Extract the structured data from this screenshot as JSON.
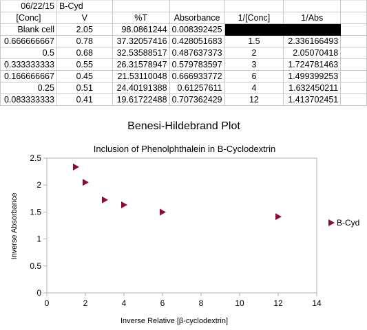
{
  "sheet": {
    "row0": [
      "06/22/15",
      "B-Cyd",
      "",
      "",
      "",
      "",
      ""
    ],
    "header": [
      "[Conc]",
      "V",
      "%T",
      "Absorbance",
      "1/[Conc]",
      "1/Abs"
    ],
    "rows": [
      [
        "Blank cell",
        "2.05",
        "98.0861244",
        "0.008392425",
        "",
        ""
      ],
      [
        "0.666666667",
        "0.78",
        "37.32057416",
        "0.428051683",
        "1.5",
        "2.336166493"
      ],
      [
        "0.5",
        "0.68",
        "32.53588517",
        "0.487637373",
        "2",
        "2.05070418"
      ],
      [
        "0.333333333",
        "0.55",
        "26.31578947",
        "0.579783597",
        "3",
        "1.724781463"
      ],
      [
        "0.166666667",
        "0.45",
        "21.53110048",
        "0.666933772",
        "6",
        "1.499399253"
      ],
      [
        "0.25",
        "0.51",
        "24.40191388",
        "0.61257611",
        "4",
        "1.632450211"
      ],
      [
        "0.083333333",
        "0.41",
        "19.61722488",
        "0.707362429",
        "12",
        "1.413702451"
      ]
    ]
  },
  "chart_data": {
    "type": "scatter",
    "title": "Benesi-Hildebrand Plot",
    "subtitle": "Inclusion of Phenolphthalein in B-Cyclodextrin",
    "xlabel": "Inverse Relative [β-cyclodextrin]",
    "ylabel": "Inverse Absorbance",
    "xlim": [
      0,
      14
    ],
    "ylim": [
      0,
      2.5
    ],
    "xticks": [
      "0",
      "2",
      "4",
      "6",
      "8",
      "10",
      "12",
      "14"
    ],
    "yticks": [
      "0",
      "0.5",
      "1",
      "1.5",
      "2",
      "2.5"
    ],
    "grid": false,
    "legend_position": "right",
    "series": [
      {
        "name": "B-Cyd",
        "color": "#8b0a3c",
        "marker": "triangle-right",
        "x": [
          1.5,
          2,
          3,
          6,
          4,
          12
        ],
        "y": [
          2.336166493,
          2.05070418,
          1.724781463,
          1.499399253,
          1.632450211,
          1.413702451
        ]
      }
    ]
  }
}
